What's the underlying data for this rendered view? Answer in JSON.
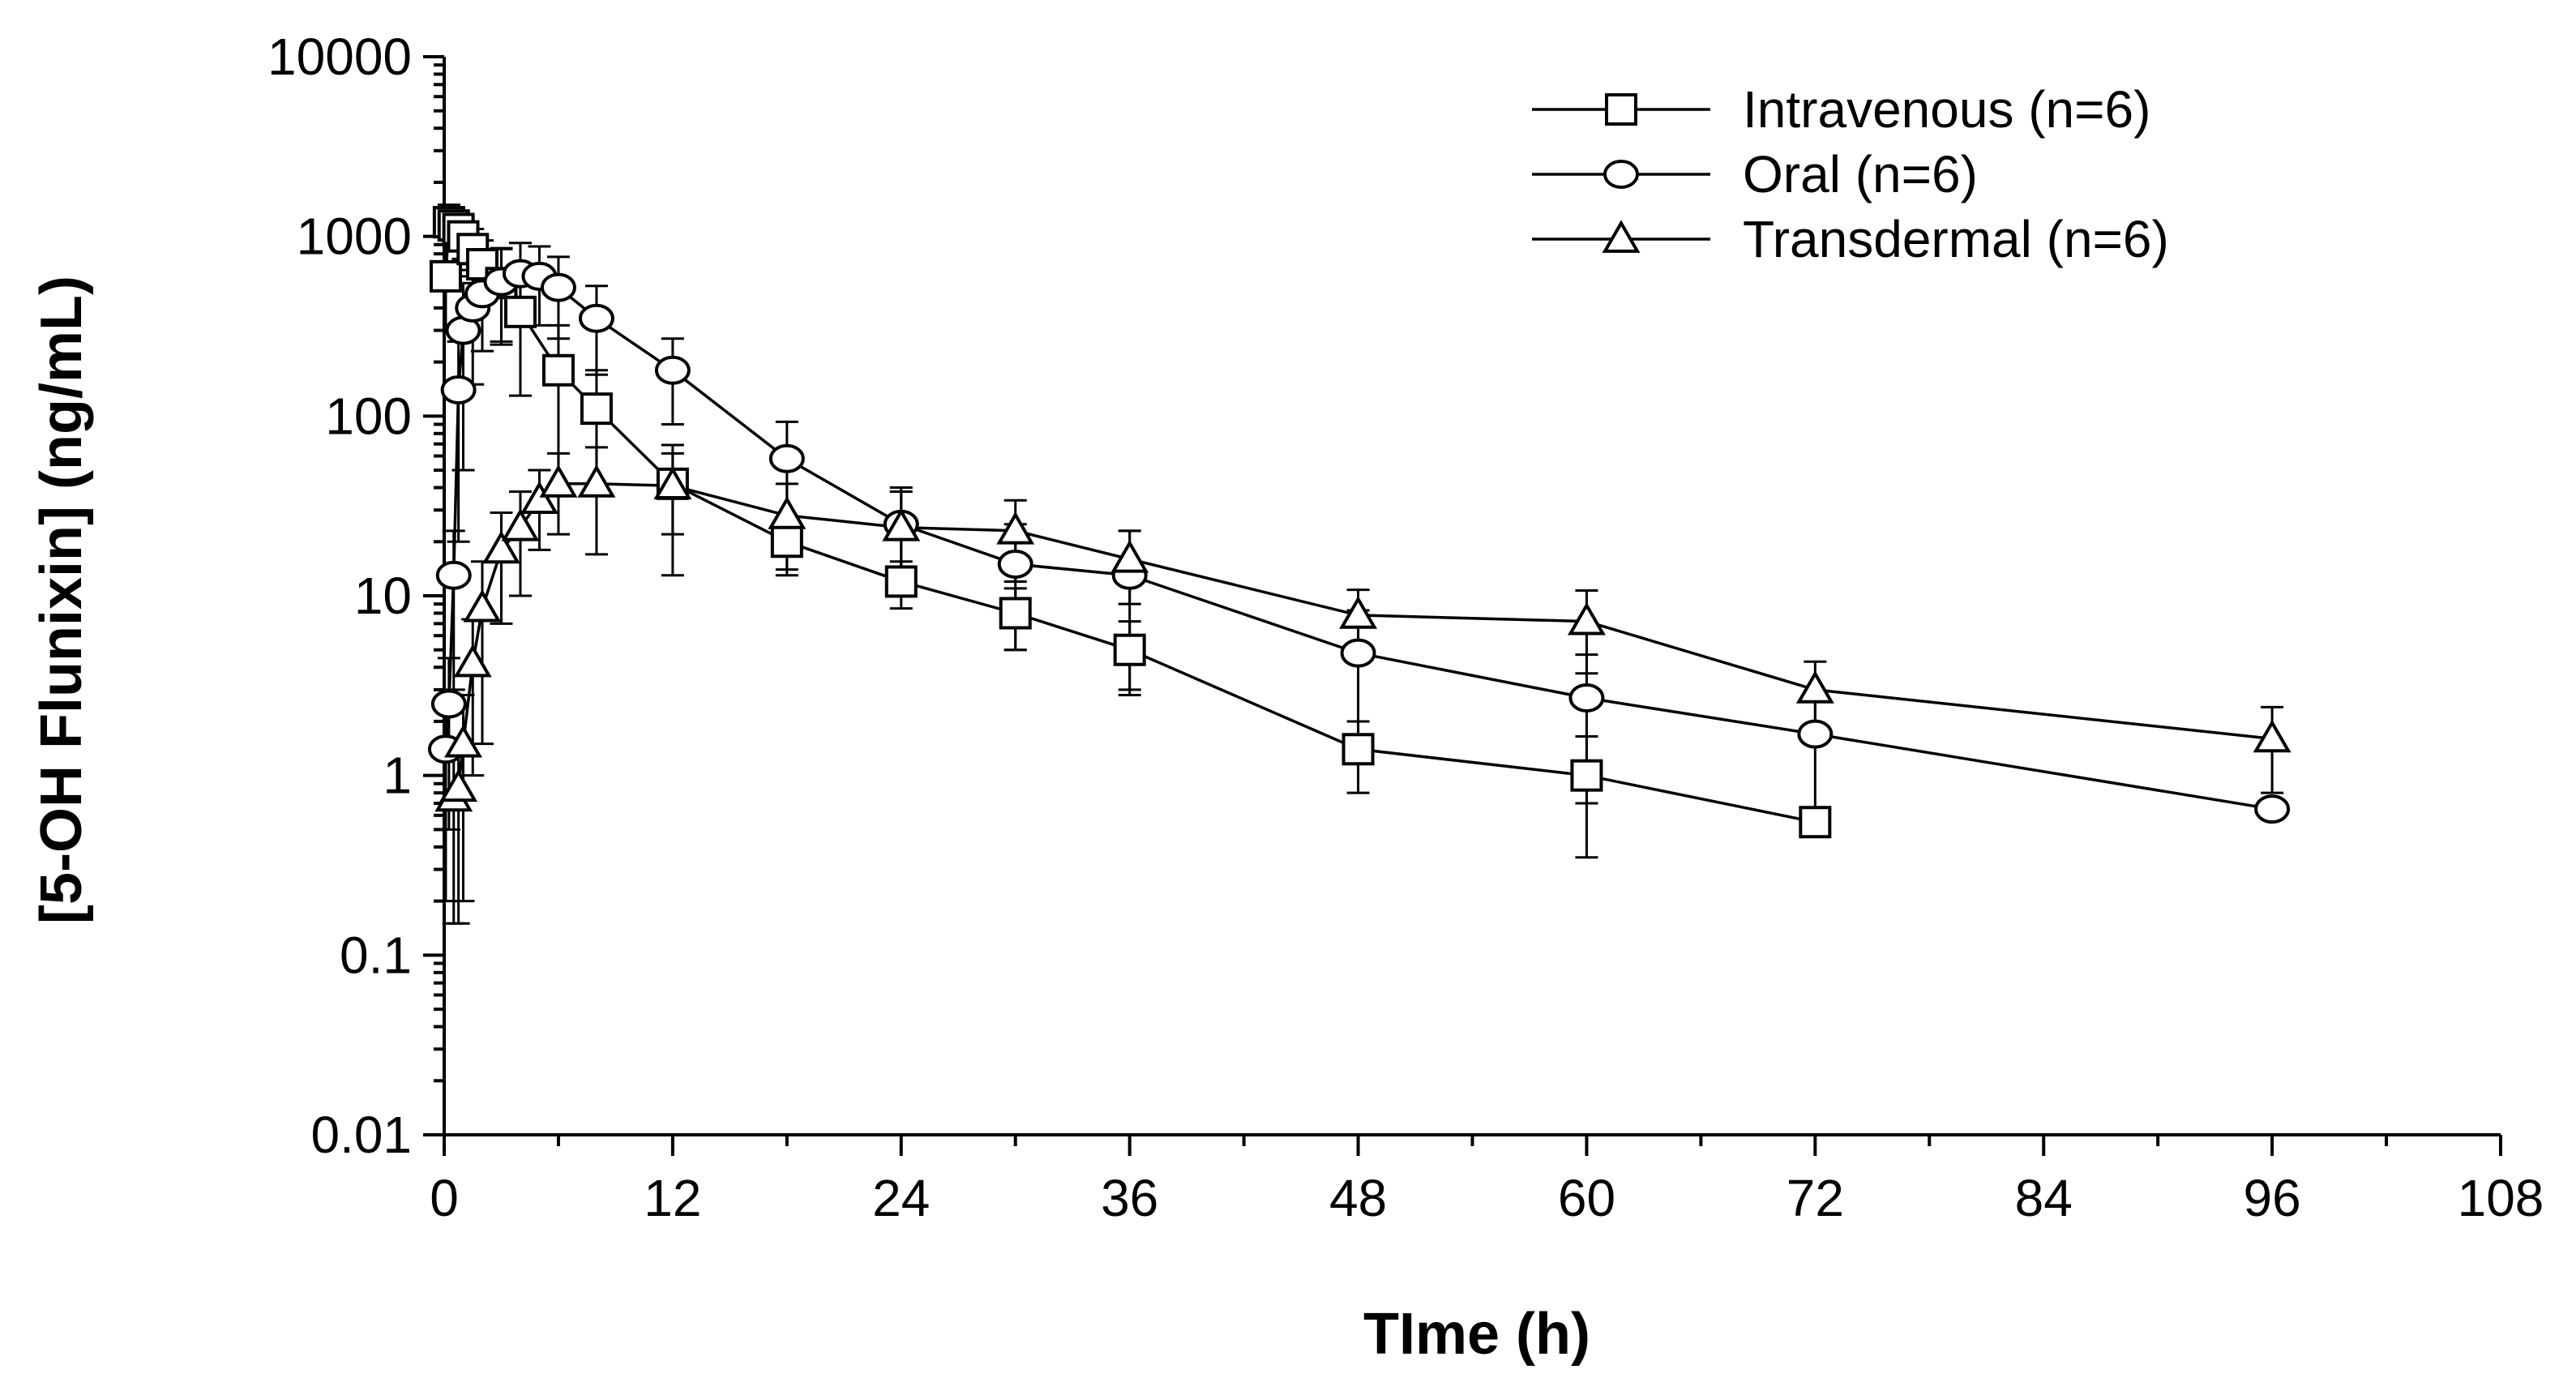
{
  "chart_data": {
    "type": "line",
    "title": "",
    "xlabel": "TIme (h)",
    "ylabel": "[5-OH Flunixin] (ng/mL)",
    "yscale": "log",
    "xlim": [
      0,
      108
    ],
    "ylim": [
      0.01,
      10000
    ],
    "xticks": [
      0,
      12,
      24,
      36,
      48,
      60,
      72,
      84,
      96,
      108
    ],
    "yticks": [
      0.01,
      0.1,
      1,
      10,
      100,
      1000,
      10000
    ],
    "ytick_labels": [
      "0.01",
      "0.1",
      "1",
      "10",
      "100",
      "1000",
      "10000"
    ],
    "legend_position": "top-right",
    "series": [
      {
        "name": "Intravenous (n=6)",
        "marker": "square",
        "points": [
          {
            "x": 0.083,
            "y": 600,
            "err": 300
          },
          {
            "x": 0.25,
            "y": 1200,
            "err": 300
          },
          {
            "x": 0.5,
            "y": 1150,
            "err": 250
          },
          {
            "x": 0.75,
            "y": 1100,
            "err": 250
          },
          {
            "x": 1,
            "y": 1000,
            "err": 250
          },
          {
            "x": 1.5,
            "y": 850,
            "err": 250
          },
          {
            "x": 2,
            "y": 700,
            "err": 250
          },
          {
            "x": 3,
            "y": 550,
            "err": 300
          },
          {
            "x": 4,
            "y": 380,
            "err": 250
          },
          {
            "x": 6,
            "y": 180,
            "err": 140
          },
          {
            "x": 8,
            "y": 110,
            "err": 70
          },
          {
            "x": 12,
            "y": 42,
            "err": 20
          },
          {
            "x": 18,
            "y": 20,
            "err": 7
          },
          {
            "x": 24,
            "y": 12,
            "err": 3.5
          },
          {
            "x": 30,
            "y": 8,
            "err": 3
          },
          {
            "x": 36,
            "y": 5,
            "err": 2.2
          },
          {
            "x": 48,
            "y": 1.4,
            "err": 0.6
          },
          {
            "x": 60,
            "y": 1.0,
            "err": 0.65
          },
          {
            "x": 72,
            "y": 0.55,
            "err": 0
          }
        ]
      },
      {
        "name": "Oral (n=6)",
        "marker": "circle",
        "points": [
          {
            "x": 0.083,
            "y": 1.4,
            "err": 1.2
          },
          {
            "x": 0.25,
            "y": 2.5,
            "err": 2.0
          },
          {
            "x": 0.5,
            "y": 13,
            "err": 10
          },
          {
            "x": 0.75,
            "y": 140,
            "err": 120
          },
          {
            "x": 1,
            "y": 300,
            "err": 250
          },
          {
            "x": 1.5,
            "y": 400,
            "err": 250
          },
          {
            "x": 2,
            "y": 480,
            "err": 250
          },
          {
            "x": 3,
            "y": 560,
            "err": 300
          },
          {
            "x": 4,
            "y": 620,
            "err": 300
          },
          {
            "x": 5,
            "y": 600,
            "err": 280
          },
          {
            "x": 6,
            "y": 520,
            "err": 250
          },
          {
            "x": 8,
            "y": 350,
            "err": 180
          },
          {
            "x": 12,
            "y": 180,
            "err": 90
          },
          {
            "x": 18,
            "y": 58,
            "err": 35
          },
          {
            "x": 24,
            "y": 25,
            "err": 15
          },
          {
            "x": 30,
            "y": 15,
            "err": 10
          },
          {
            "x": 36,
            "y": 13,
            "err": 10
          },
          {
            "x": 48,
            "y": 4.8,
            "err": 3.5
          },
          {
            "x": 60,
            "y": 2.7,
            "err": 2.0
          },
          {
            "x": 72,
            "y": 1.7,
            "err": 1.2
          },
          {
            "x": 96,
            "y": 0.65,
            "err": 0.08
          }
        ]
      },
      {
        "name": "Transdermal (n=6)",
        "marker": "triangle",
        "points": [
          {
            "x": 0.5,
            "y": 0.75,
            "err": 0.6
          },
          {
            "x": 0.75,
            "y": 0.85,
            "err": 0.7
          },
          {
            "x": 1,
            "y": 1.5,
            "err": 1.3
          },
          {
            "x": 1.5,
            "y": 4.2,
            "err": 3.2
          },
          {
            "x": 2,
            "y": 8.5,
            "err": 7
          },
          {
            "x": 3,
            "y": 18,
            "err": 11
          },
          {
            "x": 4,
            "y": 24,
            "err": 14
          },
          {
            "x": 5,
            "y": 34,
            "err": 16
          },
          {
            "x": 6,
            "y": 42,
            "err": 20
          },
          {
            "x": 8,
            "y": 42,
            "err": 25
          },
          {
            "x": 12,
            "y": 41,
            "err": 28
          },
          {
            "x": 18,
            "y": 28,
            "err": 14
          },
          {
            "x": 24,
            "y": 24,
            "err": 14
          },
          {
            "x": 30,
            "y": 23,
            "err": 11
          },
          {
            "x": 36,
            "y": 16,
            "err": 7
          },
          {
            "x": 48,
            "y": 7.8,
            "err": 3
          },
          {
            "x": 60,
            "y": 7.2,
            "err": 3.5
          },
          {
            "x": 72,
            "y": 3,
            "err": 1.3
          },
          {
            "x": 96,
            "y": 1.6,
            "err": 0.8
          }
        ]
      }
    ]
  }
}
